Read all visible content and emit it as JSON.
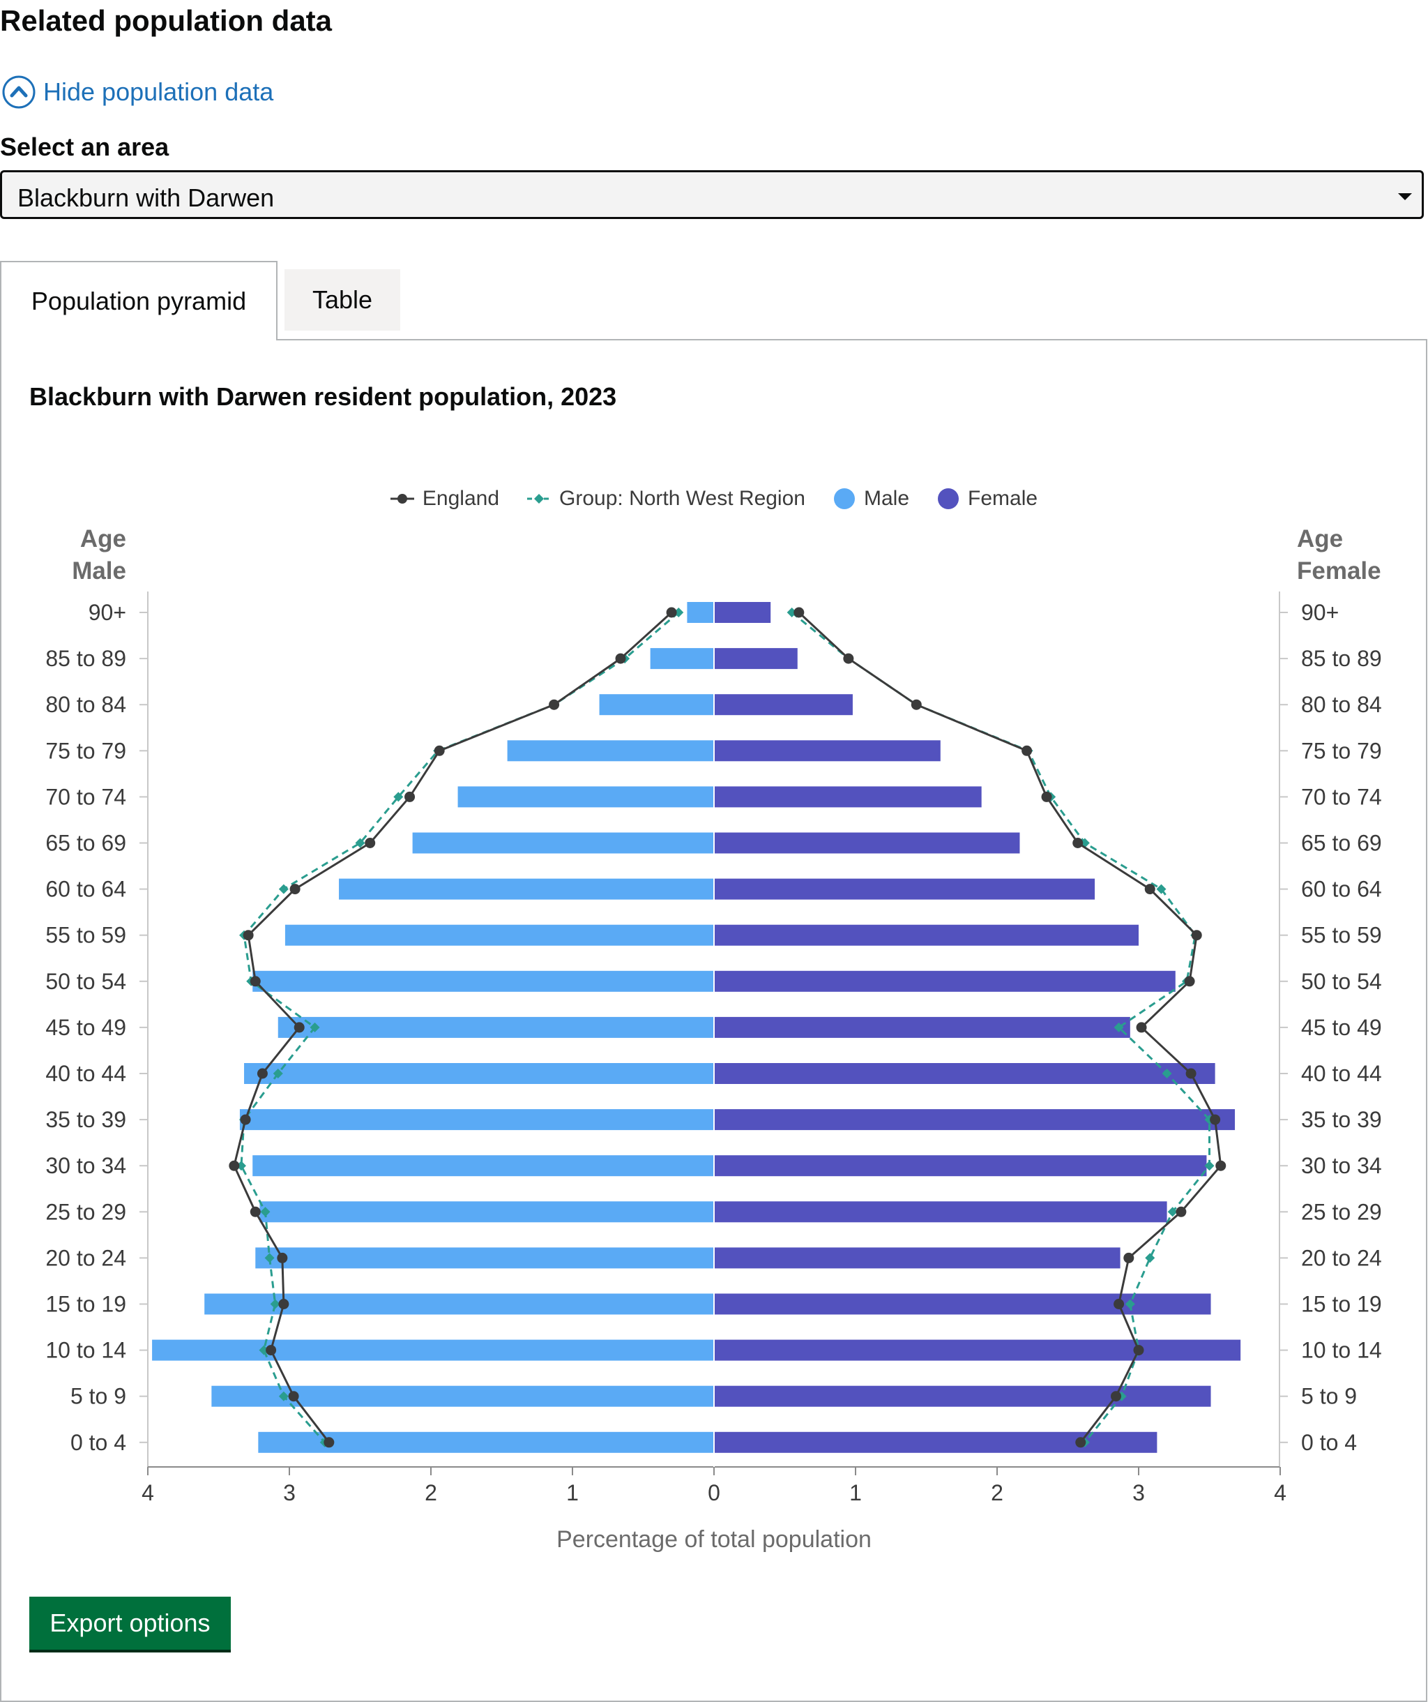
{
  "heading": "Related population data",
  "toggle": {
    "label": "Hide population data"
  },
  "area_select": {
    "label": "Select an area",
    "value": "Blackburn with Darwen"
  },
  "tabs": [
    {
      "label": "Population pyramid",
      "selected": true
    },
    {
      "label": "Table",
      "selected": false
    }
  ],
  "export": {
    "label": "Export options"
  },
  "colors": {
    "link": "#1d70b8",
    "male": "#5aaaf5",
    "female": "#5352be",
    "england": "#3b3b3b",
    "region": "#2a9d8f",
    "button": "#00703c"
  },
  "chart_data": {
    "type": "bar",
    "subtype": "population-pyramid",
    "title": "Blackburn with Darwen resident population, 2023",
    "xlabel": "Percentage of total population",
    "ylabel_left": [
      "Age",
      "Male"
    ],
    "ylabel_right": [
      "Age",
      "Female"
    ],
    "xlim": [
      -4,
      4
    ],
    "x_ticks": [
      4,
      3,
      2,
      1,
      0,
      1,
      2,
      3,
      4
    ],
    "legend_position": "top-center",
    "grid": false,
    "categories": [
      "90+",
      "85 to 89",
      "80 to 84",
      "75 to 79",
      "70 to 74",
      "65 to 69",
      "60 to 64",
      "55 to 59",
      "50 to 54",
      "45 to 49",
      "40 to 44",
      "35 to 39",
      "30 to 34",
      "25 to 29",
      "20 to 24",
      "15 to 19",
      "10 to 14",
      "5 to 9",
      "0 to 4"
    ],
    "series": [
      {
        "name": "Male",
        "kind": "bar",
        "side": "left",
        "values": [
          0.19,
          0.45,
          0.81,
          1.46,
          1.81,
          2.13,
          2.65,
          3.03,
          3.26,
          3.08,
          3.32,
          3.35,
          3.26,
          3.21,
          3.24,
          3.6,
          3.97,
          3.55,
          3.22
        ]
      },
      {
        "name": "Female",
        "kind": "bar",
        "side": "right",
        "values": [
          0.4,
          0.59,
          0.98,
          1.6,
          1.89,
          2.16,
          2.69,
          3.0,
          3.26,
          2.94,
          3.54,
          3.68,
          3.48,
          3.2,
          2.87,
          3.51,
          3.72,
          3.51,
          3.13
        ]
      },
      {
        "name": "England",
        "kind": "line",
        "style": "solid",
        "male": [
          0.3,
          0.66,
          1.13,
          1.94,
          2.15,
          2.43,
          2.96,
          3.29,
          3.24,
          2.93,
          3.19,
          3.31,
          3.39,
          3.24,
          3.05,
          3.04,
          3.13,
          2.97,
          2.72
        ],
        "female": [
          0.6,
          0.95,
          1.43,
          2.21,
          2.35,
          2.57,
          3.08,
          3.41,
          3.36,
          3.02,
          3.37,
          3.54,
          3.58,
          3.3,
          2.93,
          2.86,
          3.0,
          2.84,
          2.59
        ]
      },
      {
        "name": "Group: North West Region",
        "kind": "line",
        "style": "dashed",
        "male": [
          0.25,
          0.63,
          1.13,
          1.95,
          2.23,
          2.5,
          3.04,
          3.32,
          3.27,
          2.82,
          3.08,
          3.32,
          3.34,
          3.17,
          3.14,
          3.1,
          3.18,
          3.04,
          2.75
        ],
        "female": [
          0.55,
          0.95,
          1.43,
          2.22,
          2.38,
          2.62,
          3.16,
          3.4,
          3.34,
          2.86,
          3.2,
          3.5,
          3.5,
          3.24,
          3.08,
          2.94,
          3.0,
          2.88,
          2.62
        ]
      }
    ]
  }
}
